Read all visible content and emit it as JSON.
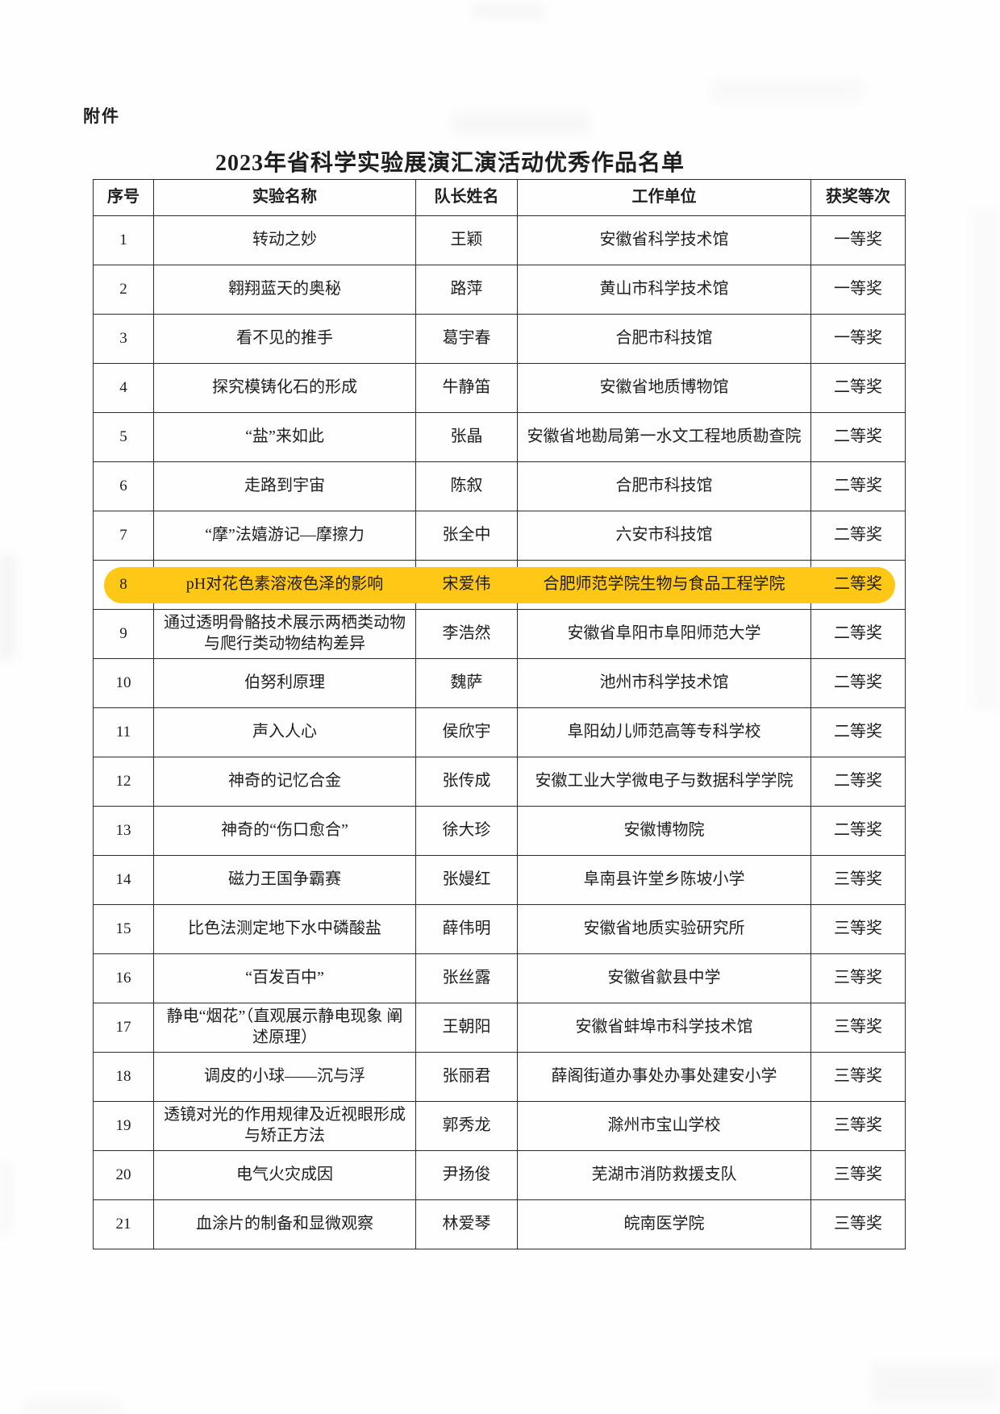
{
  "page": {
    "attachment_label": "附件",
    "title": "2023年省科学实验展演汇演活动优秀作品名单"
  },
  "table": {
    "columns": [
      "序号",
      "实验名称",
      "队长姓名",
      "工作单位",
      "获奖等次"
    ],
    "highlighted_row": 8,
    "highlight_color": "#ffc716",
    "rows": [
      {
        "no": "1",
        "name": "转动之妙",
        "leader": "王颖",
        "unit": "安徽省科学技术馆",
        "award": "一等奖"
      },
      {
        "no": "2",
        "name": "翱翔蓝天的奥秘",
        "leader": "路萍",
        "unit": "黄山市科学技术馆",
        "award": "一等奖"
      },
      {
        "no": "3",
        "name": "看不见的推手",
        "leader": "葛宇春",
        "unit": "合肥市科技馆",
        "award": "一等奖"
      },
      {
        "no": "4",
        "name": "探究模铸化石的形成",
        "leader": "牛静笛",
        "unit": "安徽省地质博物馆",
        "award": "二等奖"
      },
      {
        "no": "5",
        "name": "“盐”来如此",
        "leader": "张晶",
        "unit": "安徽省地勘局第一水文工程地质勘查院",
        "award": "二等奖"
      },
      {
        "no": "6",
        "name": "走路到宇宙",
        "leader": "陈叙",
        "unit": "合肥市科技馆",
        "award": "二等奖"
      },
      {
        "no": "7",
        "name": "“摩”法嬉游记—摩擦力",
        "leader": "张全中",
        "unit": "六安市科技馆",
        "award": "二等奖"
      },
      {
        "no": "8",
        "name": "pH对花色素溶液色泽的影响",
        "leader": "宋爱伟",
        "unit": "合肥师范学院生物与食品工程学院",
        "award": "二等奖"
      },
      {
        "no": "9",
        "name": "通过透明骨骼技术展示两栖类动物与爬行类动物结构差异",
        "leader": "李浩然",
        "unit": "安徽省阜阳市阜阳师范大学",
        "award": "二等奖"
      },
      {
        "no": "10",
        "name": "伯努利原理",
        "leader": "魏萨",
        "unit": "池州市科学技术馆",
        "award": "二等奖"
      },
      {
        "no": "11",
        "name": "声入人心",
        "leader": "侯欣宇",
        "unit": "阜阳幼儿师范高等专科学校",
        "award": "二等奖"
      },
      {
        "no": "12",
        "name": "神奇的记忆合金",
        "leader": "张传成",
        "unit": "安徽工业大学微电子与数据科学学院",
        "award": "二等奖"
      },
      {
        "no": "13",
        "name": "神奇的“伤口愈合”",
        "leader": "徐大珍",
        "unit": "安徽博物院",
        "award": "二等奖"
      },
      {
        "no": "14",
        "name": "磁力王国争霸赛",
        "leader": "张嫚红",
        "unit": "阜南县许堂乡陈坡小学",
        "award": "三等奖"
      },
      {
        "no": "15",
        "name": "比色法测定地下水中磷酸盐",
        "leader": "薛伟明",
        "unit": "安徽省地质实验研究所",
        "award": "三等奖"
      },
      {
        "no": "16",
        "name": "“百发百中”",
        "leader": "张丝露",
        "unit": "安徽省歙县中学",
        "award": "三等奖"
      },
      {
        "no": "17",
        "name": "静电“烟花”（直观展示静电现象 阐述原理）",
        "leader": "王朝阳",
        "unit": "安徽省蚌埠市科学技术馆",
        "award": "三等奖"
      },
      {
        "no": "18",
        "name": "调皮的小球——沉与浮",
        "leader": "张丽君",
        "unit": "薛阁街道办事处办事处建安小学",
        "award": "三等奖"
      },
      {
        "no": "19",
        "name": "透镜对光的作用规律及近视眼形成与矫正方法",
        "leader": "郭秀龙",
        "unit": "滁州市宝山学校",
        "award": "三等奖"
      },
      {
        "no": "20",
        "name": "电气火灾成因",
        "leader": "尹扬俊",
        "unit": "芜湖市消防救援支队",
        "award": "三等奖"
      },
      {
        "no": "21",
        "name": "血涂片的制备和显微观察",
        "leader": "林爱琴",
        "unit": "皖南医学院",
        "award": "三等奖"
      }
    ]
  }
}
